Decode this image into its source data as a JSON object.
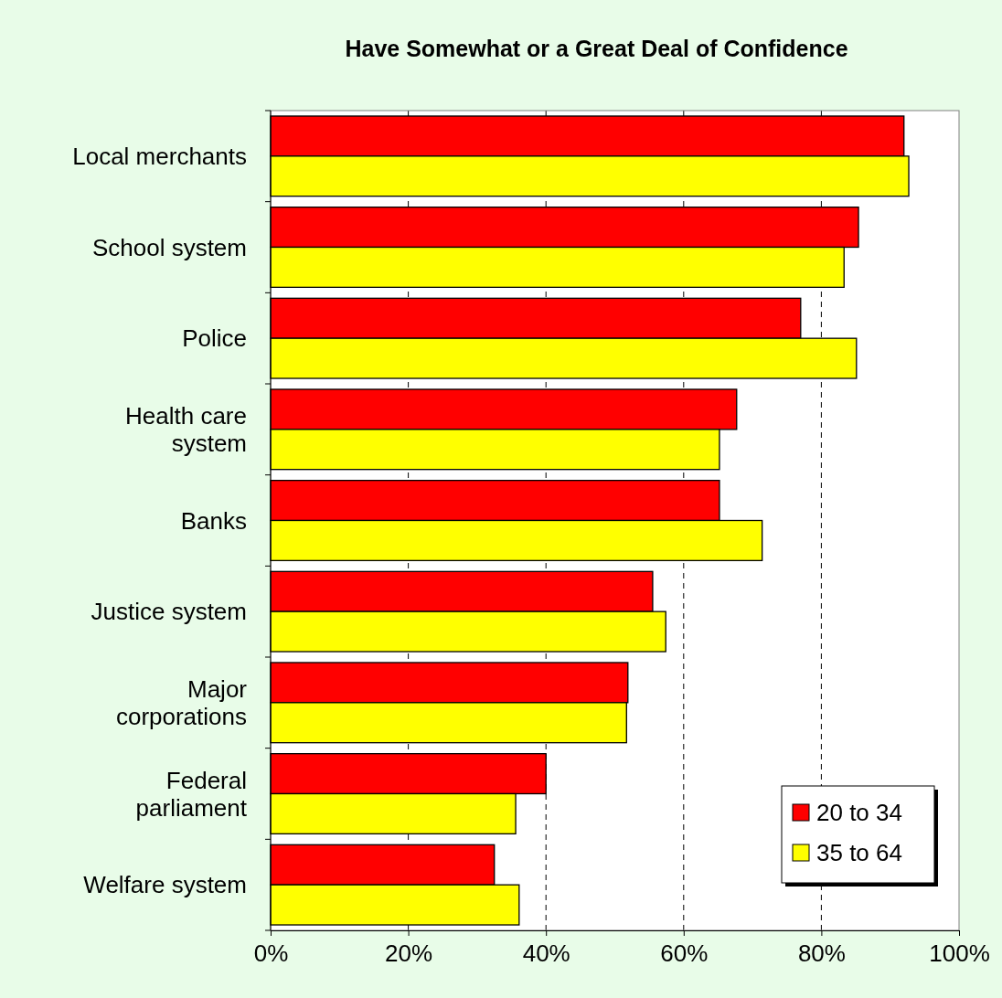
{
  "chart_data": {
    "type": "bar",
    "orientation": "horizontal",
    "title": "Have Somewhat or a Great Deal of Confidence",
    "categories": [
      "Local merchants",
      "School system",
      "Police",
      "Health care\nsystem",
      "Banks",
      "Justice system",
      "Major\ncorporations",
      "Federal\nparliament",
      "Welfare system"
    ],
    "series": [
      {
        "name": "20 to 34",
        "color": "#ff0000",
        "values": [
          92.0,
          85.4,
          77.0,
          67.7,
          65.2,
          55.5,
          51.9,
          40.0,
          32.5
        ]
      },
      {
        "name": "35 to 64",
        "color": "#ffff00",
        "values": [
          92.7,
          83.3,
          85.1,
          65.2,
          71.4,
          57.4,
          51.7,
          35.6,
          36.1
        ]
      }
    ],
    "xlim": [
      0,
      100
    ],
    "xticks": [
      {
        "value": 0,
        "label": "0%"
      },
      {
        "value": 20,
        "label": "20%"
      },
      {
        "value": 40,
        "label": "40%"
      },
      {
        "value": 60,
        "label": "60%"
      },
      {
        "value": 80,
        "label": "80%"
      },
      {
        "value": 100,
        "label": "100%"
      }
    ],
    "grid": "x",
    "legend": "bottom right"
  }
}
